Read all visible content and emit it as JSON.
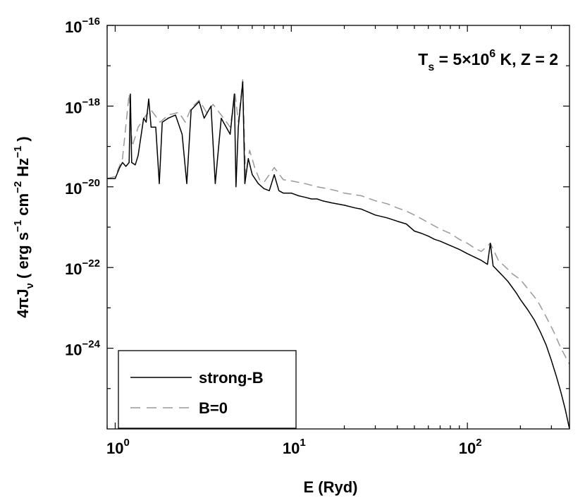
{
  "chart_data": {
    "type": "line",
    "annotation": {
      "prefix": "T",
      "subscript": "s",
      "eq_mantissa": " = 5×10",
      "exponent": "6",
      "rest": " K,  Z = 2"
    },
    "xlabel": "E  (Ryd)",
    "ylabel": {
      "prefix": "4πJ",
      "subscript": "ν",
      "units_open": "   ( erg s",
      "exp1": "−1",
      "cm": " cm",
      "exp2": "−2",
      "hz": " Hz",
      "exp3": "−1",
      "units_close": " )"
    },
    "x_scale": "log",
    "y_scale": "log",
    "xlim": [
      0.9,
      380
    ],
    "ylim": [
      1e-26,
      1e-16
    ],
    "x_ticks": [
      {
        "value": 1,
        "base": "10",
        "exp": "0"
      },
      {
        "value": 10,
        "base": "10",
        "exp": "1"
      },
      {
        "value": 100,
        "base": "10",
        "exp": "2"
      }
    ],
    "y_ticks": [
      {
        "value": 1e-16,
        "base": "10",
        "exp": "−16"
      },
      {
        "value": 1e-18,
        "base": "10",
        "exp": "−18"
      },
      {
        "value": 1e-20,
        "base": "10",
        "exp": "−20"
      },
      {
        "value": 1e-22,
        "base": "10",
        "exp": "−22"
      },
      {
        "value": 1e-24,
        "base": "10",
        "exp": "−24"
      }
    ],
    "legend_position": "bottom-left",
    "series": [
      {
        "name": "strong-B",
        "color": "#000000",
        "dash": "solid",
        "points": [
          [
            0.9,
            1.6e-20
          ],
          [
            1.0,
            1.6e-20
          ],
          [
            1.06,
            3e-20
          ],
          [
            1.1,
            4e-20
          ],
          [
            1.15,
            3.2e-20
          ],
          [
            1.2,
            4e-20
          ],
          [
            1.22,
            2e-18
          ],
          [
            1.24,
            4e-20
          ],
          [
            1.3,
            3.5e-20
          ],
          [
            1.35,
            6e-20
          ],
          [
            1.45,
            5e-19
          ],
          [
            1.5,
            4e-19
          ],
          [
            1.55,
            1.5e-18
          ],
          [
            1.6,
            3e-19
          ],
          [
            1.7,
            3e-19
          ],
          [
            1.78,
            1.2e-20
          ],
          [
            1.85,
            4e-19
          ],
          [
            2.0,
            5e-19
          ],
          [
            2.2,
            6e-19
          ],
          [
            2.4,
            2e-19
          ],
          [
            2.55,
            1.2e-20
          ],
          [
            2.7,
            8e-19
          ],
          [
            3.0,
            1.3e-18
          ],
          [
            3.2,
            5e-19
          ],
          [
            3.5,
            1e-18
          ],
          [
            3.7,
            1.2e-20
          ],
          [
            4.0,
            5e-19
          ],
          [
            4.5,
            2e-19
          ],
          [
            4.75,
            2e-18
          ],
          [
            4.85,
            1e-20
          ],
          [
            5.0,
            3e-19
          ],
          [
            5.3,
            4e-18
          ],
          [
            5.45,
            1.2e-20
          ],
          [
            5.7,
            5e-20
          ],
          [
            6.0,
            2e-20
          ],
          [
            6.5,
            1.2e-20
          ],
          [
            7,
            9e-21
          ],
          [
            7.5,
            8e-21
          ],
          [
            8,
            2e-20
          ],
          [
            8.5,
            8e-21
          ],
          [
            9,
            7e-21
          ],
          [
            10,
            7e-21
          ],
          [
            11,
            6e-21
          ],
          [
            12,
            5.5e-21
          ],
          [
            13,
            5e-21
          ],
          [
            14,
            5e-21
          ],
          [
            15,
            4.5e-21
          ],
          [
            17,
            4e-21
          ],
          [
            20,
            3.5e-21
          ],
          [
            23,
            3e-21
          ],
          [
            25,
            2.8e-21
          ],
          [
            30,
            2e-21
          ],
          [
            35,
            1.7e-21
          ],
          [
            40,
            1.4e-21
          ],
          [
            45,
            1.2e-21
          ],
          [
            50,
            8e-22
          ],
          [
            55,
            7e-22
          ],
          [
            60,
            6e-22
          ],
          [
            65,
            5e-22
          ],
          [
            70,
            4.5e-22
          ],
          [
            80,
            3.5e-22
          ],
          [
            90,
            2.8e-22
          ],
          [
            100,
            2.2e-22
          ],
          [
            110,
            1.8e-22
          ],
          [
            120,
            1.5e-22
          ],
          [
            130,
            1.2e-22
          ],
          [
            135,
            4e-22
          ],
          [
            140,
            1.1e-22
          ],
          [
            150,
            8e-23
          ],
          [
            160,
            6e-23
          ],
          [
            170,
            4.5e-23
          ],
          [
            180,
            3.2e-23
          ],
          [
            190,
            2.3e-23
          ],
          [
            200,
            1.6e-23
          ],
          [
            220,
            9e-24
          ],
          [
            240,
            5e-24
          ],
          [
            260,
            2.5e-24
          ],
          [
            280,
            1.2e-24
          ],
          [
            300,
            5e-25
          ],
          [
            320,
            2e-25
          ],
          [
            340,
            8e-26
          ],
          [
            360,
            3e-26
          ],
          [
            380,
            1e-26
          ]
        ]
      },
      {
        "name": "B=0",
        "color": "#999999",
        "dash": "dashed",
        "points": [
          [
            0.9,
            1.6e-20
          ],
          [
            1.0,
            1.8e-20
          ],
          [
            1.1,
            5e-20
          ],
          [
            1.2,
            2e-18
          ],
          [
            1.25,
            1e-19
          ],
          [
            1.35,
            3e-19
          ],
          [
            1.5,
            6e-19
          ],
          [
            1.6,
            8e-19
          ],
          [
            1.8,
            4e-19
          ],
          [
            2.0,
            6e-19
          ],
          [
            2.3,
            7e-19
          ],
          [
            2.5,
            4e-19
          ],
          [
            2.7,
            9e-19
          ],
          [
            3.0,
            1.4e-18
          ],
          [
            3.3,
            7e-19
          ],
          [
            3.6,
            1.1e-18
          ],
          [
            4.0,
            6e-19
          ],
          [
            4.5,
            3e-19
          ],
          [
            4.8,
            2e-18
          ],
          [
            5.0,
            4e-19
          ],
          [
            5.3,
            4.5e-18
          ],
          [
            5.5,
            2e-20
          ],
          [
            5.8,
            8e-20
          ],
          [
            6.2,
            3e-20
          ],
          [
            6.6,
            1.5e-20
          ],
          [
            7,
            1.3e-20
          ],
          [
            8,
            3e-20
          ],
          [
            9,
            1.5e-20
          ],
          [
            10,
            1.4e-20
          ],
          [
            12,
            1.2e-20
          ],
          [
            14,
            1e-20
          ],
          [
            16,
            9e-21
          ],
          [
            18,
            8e-21
          ],
          [
            20,
            7e-21
          ],
          [
            25,
            6e-21
          ],
          [
            30,
            4.5e-21
          ],
          [
            35,
            3.8e-21
          ],
          [
            40,
            3e-21
          ],
          [
            45,
            2.5e-21
          ],
          [
            50,
            2e-21
          ],
          [
            55,
            1.6e-21
          ],
          [
            60,
            1.3e-21
          ],
          [
            70,
            9e-22
          ],
          [
            80,
            7e-22
          ],
          [
            90,
            5e-22
          ],
          [
            100,
            4e-22
          ],
          [
            110,
            3e-22
          ],
          [
            120,
            2.5e-22
          ],
          [
            135,
            4e-22
          ],
          [
            150,
            1.5e-22
          ],
          [
            170,
            9e-23
          ],
          [
            180,
            7e-23
          ],
          [
            200,
            5e-23
          ],
          [
            220,
            3e-23
          ],
          [
            250,
            1.5e-23
          ],
          [
            280,
            6e-24
          ],
          [
            310,
            2.5e-24
          ],
          [
            340,
            1e-24
          ],
          [
            380,
            4e-25
          ]
        ]
      }
    ]
  }
}
